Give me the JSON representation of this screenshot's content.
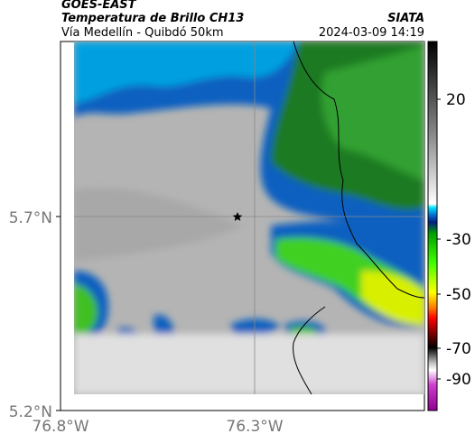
{
  "header": {
    "source": "GOES-EAST",
    "title": "Temperatura de Brillo CH13",
    "subtitle": "Vía Medellín - Quibdó 50km",
    "brand": "SIATA",
    "datetime": "2024-03-09 14:19"
  },
  "map": {
    "lat_labels": [
      "5.7°N",
      "5.2°N"
    ],
    "lon_labels": [
      "76.8°W",
      "76.3°W"
    ]
  },
  "colorbar": {
    "ticks": [
      20,
      -30,
      -50,
      -70,
      -90
    ]
  }
}
